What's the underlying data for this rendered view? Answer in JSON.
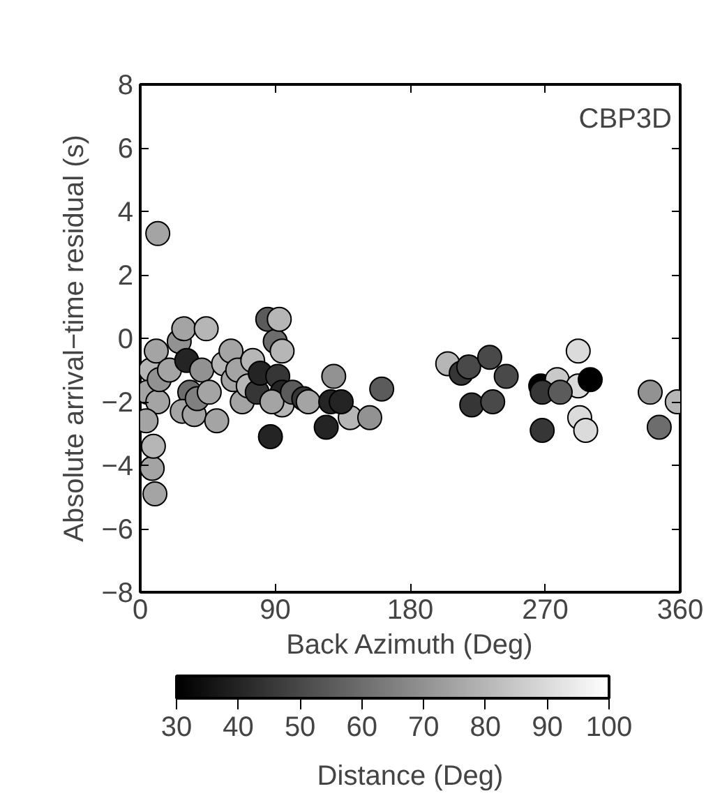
{
  "chart_data": {
    "type": "scatter",
    "xlabel": "Back Azimuth (Deg)",
    "ylabel": "Absolute arrival−time residual (s)",
    "clabel": "Distance (Deg)",
    "annotations": [
      "CBP3D"
    ],
    "xlim": [
      0,
      360
    ],
    "xticks": [
      0,
      90,
      180,
      270,
      360
    ],
    "ylim": [
      -8,
      8
    ],
    "yticks": [
      -8,
      -6,
      -4,
      -2,
      0,
      2,
      4,
      6,
      8
    ],
    "clim": [
      30,
      100
    ],
    "cticks": [
      30,
      40,
      50,
      60,
      70,
      80,
      90,
      100
    ],
    "grid": false,
    "marker": "circle",
    "x": [
      11.7,
      9.8,
      8,
      8.8,
      7,
      10.7,
      5,
      11.7,
      3.9,
      12.7,
      19.5,
      26,
      29,
      31,
      33,
      28,
      36,
      41,
      44,
      38,
      46,
      51,
      55.6,
      60.5,
      62,
      65,
      68,
      72,
      75,
      78,
      80,
      85,
      90,
      91.7,
      94.6,
      92.7,
      94.6,
      94.6,
      86.8,
      87.8,
      101.5,
      109,
      112,
      124,
      140,
      129,
      153,
      161,
      127,
      134,
      205,
      214,
      219,
      233,
      244,
      221,
      235,
      267,
      278,
      268,
      268,
      292,
      292,
      300,
      293,
      297,
      280,
      340,
      346,
      358
    ],
    "values": [
      3.3,
      -4.9,
      -4.1,
      -3.4,
      -1,
      -0.4,
      -1.7,
      -2,
      -2.6,
      -1.3,
      -1,
      -0.1,
      0.3,
      -0.7,
      -1.7,
      -2.3,
      -2.4,
      -1,
      0.3,
      -1.9,
      -1.7,
      -2.6,
      -0.8,
      -0.4,
      -1.3,
      -1,
      -2,
      -1.5,
      -0.7,
      -1.7,
      -1.1,
      0.6,
      -0.1,
      -1.2,
      -0.4,
      0.6,
      -1.7,
      -2.1,
      -3.1,
      -2,
      -1.7,
      -1.9,
      -2,
      -2.8,
      -2.5,
      -1.2,
      -2.5,
      -1.6,
      -2,
      -2,
      -0.8,
      -1.1,
      -0.9,
      -0.6,
      -1.2,
      -2.1,
      -2,
      -1.5,
      -1.3,
      -1.7,
      -2.9,
      -0.4,
      -1.5,
      -1.3,
      -2.5,
      -2.9,
      -1.7,
      -1.7,
      -2.8,
      -2
    ],
    "cvalues": [
      75,
      75,
      75,
      80,
      80,
      75,
      75,
      75,
      75,
      70,
      75,
      70,
      75,
      40,
      60,
      75,
      75,
      70,
      80,
      65,
      75,
      75,
      80,
      75,
      75,
      75,
      75,
      80,
      80,
      45,
      40,
      55,
      60,
      45,
      80,
      80,
      40,
      80,
      40,
      75,
      55,
      45,
      75,
      40,
      80,
      70,
      70,
      55,
      40,
      40,
      80,
      45,
      50,
      50,
      50,
      45,
      50,
      30,
      85,
      45,
      45,
      90,
      90,
      30,
      90,
      90,
      55,
      70,
      60,
      80
    ]
  }
}
